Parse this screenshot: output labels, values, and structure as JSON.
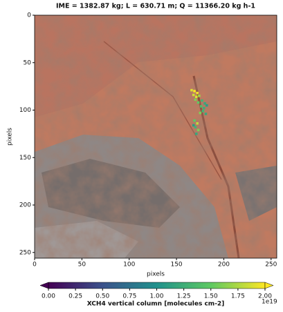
{
  "chart_data": {
    "type": "image",
    "title": "IME = 1382.87 kg; L = 630.71 m; Q = 11366.20 kg h-1",
    "xlabel": "pixels",
    "ylabel": "pixels",
    "xlim": [
      0,
      256
    ],
    "ylim": [
      256,
      0
    ],
    "xticks": [
      0,
      50,
      100,
      150,
      200,
      250
    ],
    "yticks": [
      0,
      50,
      100,
      150,
      200,
      250
    ],
    "plume": {
      "x": [
        166,
        169,
        172,
        168,
        171,
        174,
        170,
        173,
        177,
        180,
        176,
        179,
        182,
        178,
        175,
        181,
        169,
        172,
        170,
        173,
        171,
        168
      ],
      "y": [
        79,
        80,
        82,
        84,
        86,
        85,
        89,
        92,
        90,
        93,
        96,
        98,
        95,
        101,
        103,
        104,
        111,
        114,
        118,
        121,
        125,
        116
      ],
      "values": [
        1.9,
        2.0,
        1.95,
        1.85,
        1.9,
        1.7,
        1.6,
        1.5,
        1.3,
        1.2,
        1.4,
        1.25,
        1.1,
        1.3,
        1.6,
        1.2,
        1.5,
        1.8,
        1.3,
        1.6,
        1.2,
        1.1
      ]
    },
    "colorbar": {
      "label": "XCH4 vertical column [molecules cm-2]",
      "offset": "1e19",
      "extend": "both",
      "lim": [
        0,
        2
      ],
      "ticks": [
        {
          "value": 0,
          "label": "0.00"
        },
        {
          "value": 0.25,
          "label": "0.25"
        },
        {
          "value": 0.5,
          "label": "0.50"
        },
        {
          "value": 0.75,
          "label": "0.75"
        },
        {
          "value": 1,
          "label": "1.00"
        },
        {
          "value": 1.25,
          "label": "1.25"
        },
        {
          "value": 1.5,
          "label": "1.50"
        },
        {
          "value": 1.75,
          "label": "1.75"
        },
        {
          "value": 2,
          "label": "2.00"
        }
      ],
      "colors": [
        "#440154",
        "#3b528b",
        "#21918c",
        "#5ec962",
        "#fde725"
      ]
    }
  }
}
